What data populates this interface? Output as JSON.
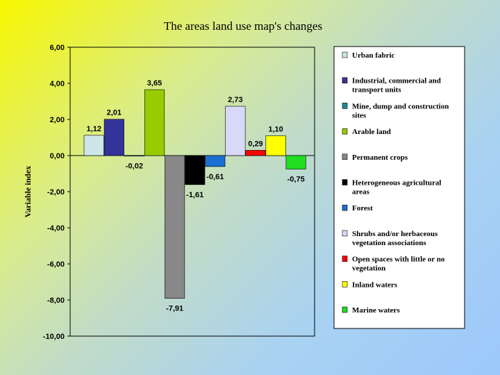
{
  "chart_data": {
    "type": "bar",
    "title": "The areas land use map's changes",
    "ylabel": "Variable index",
    "ylim": [
      -10,
      6
    ],
    "yticks": [
      "6,00",
      "4,00",
      "2,00",
      "0,00",
      "-2,00",
      "-4,00",
      "-6,00",
      "-8,00",
      "-10,00"
    ],
    "ytick_values": [
      6,
      4,
      2,
      0,
      -2,
      -4,
      -6,
      -8,
      -10
    ],
    "grid": false,
    "legend_position": "right",
    "series": [
      {
        "name": "Urban fabric",
        "value": 1.12,
        "label": "1,12",
        "color": "#cde6ea"
      },
      {
        "name": "Industrial, commercial and transport units",
        "value": 2.01,
        "label": "2,01",
        "color": "#333399"
      },
      {
        "name": "Mine, dump and construction sites",
        "value": -0.02,
        "label": "-0,02",
        "color": "#1a8c9a"
      },
      {
        "name": "Arable land",
        "value": 3.65,
        "label": "3,65",
        "color": "#99cc00"
      },
      {
        "name": "Permanent crops",
        "value": -7.91,
        "label": "-7,91",
        "color": "#888888"
      },
      {
        "name": "Heterogeneous agricultural areas",
        "value": -1.61,
        "label": "-1,61",
        "color": "#000000"
      },
      {
        "name": "Forest",
        "value": -0.61,
        "label": "-0,61",
        "color": "#1a6fd1"
      },
      {
        "name": "Shrubs and/or herbaceous vegetation associations",
        "value": 2.73,
        "label": "2,73",
        "color": "#d8d8f8"
      },
      {
        "name": "Open spaces with little or no vegetation",
        "value": 0.29,
        "label": "0,29",
        "color": "#ff0000"
      },
      {
        "name": "Inland waters",
        "value": 1.1,
        "label": "1,10",
        "color": "#ffff00"
      },
      {
        "name": "Marine waters",
        "value": -0.75,
        "label": "-0,75",
        "color": "#22dd22"
      }
    ]
  }
}
